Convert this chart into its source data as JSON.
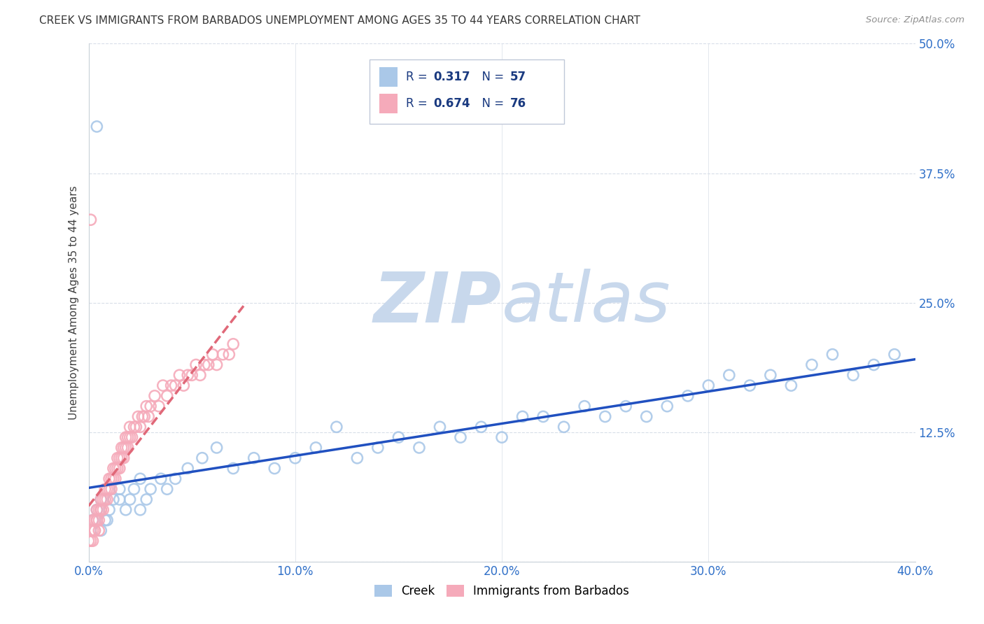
{
  "title": "CREEK VS IMMIGRANTS FROM BARBADOS UNEMPLOYMENT AMONG AGES 35 TO 44 YEARS CORRELATION CHART",
  "source": "Source: ZipAtlas.com",
  "ylabel": "Unemployment Among Ages 35 to 44 years",
  "xlim": [
    0.0,
    0.4
  ],
  "ylim": [
    0.0,
    0.5
  ],
  "creek_R": 0.317,
  "creek_N": 57,
  "barbados_R": 0.674,
  "barbados_N": 76,
  "creek_color": "#aac8e8",
  "barbados_color": "#f5aaba",
  "creek_line_color": "#2050c0",
  "barbados_line_color": "#e06878",
  "watermark_color": "#c8d8ec",
  "background_color": "#ffffff",
  "grid_color": "#d8dee8",
  "title_color": "#383838",
  "legend_text_color": "#1a3a80",
  "legend_N_color": "#1a3a80",
  "tick_color": "#3070c8",
  "source_color": "#909090"
}
